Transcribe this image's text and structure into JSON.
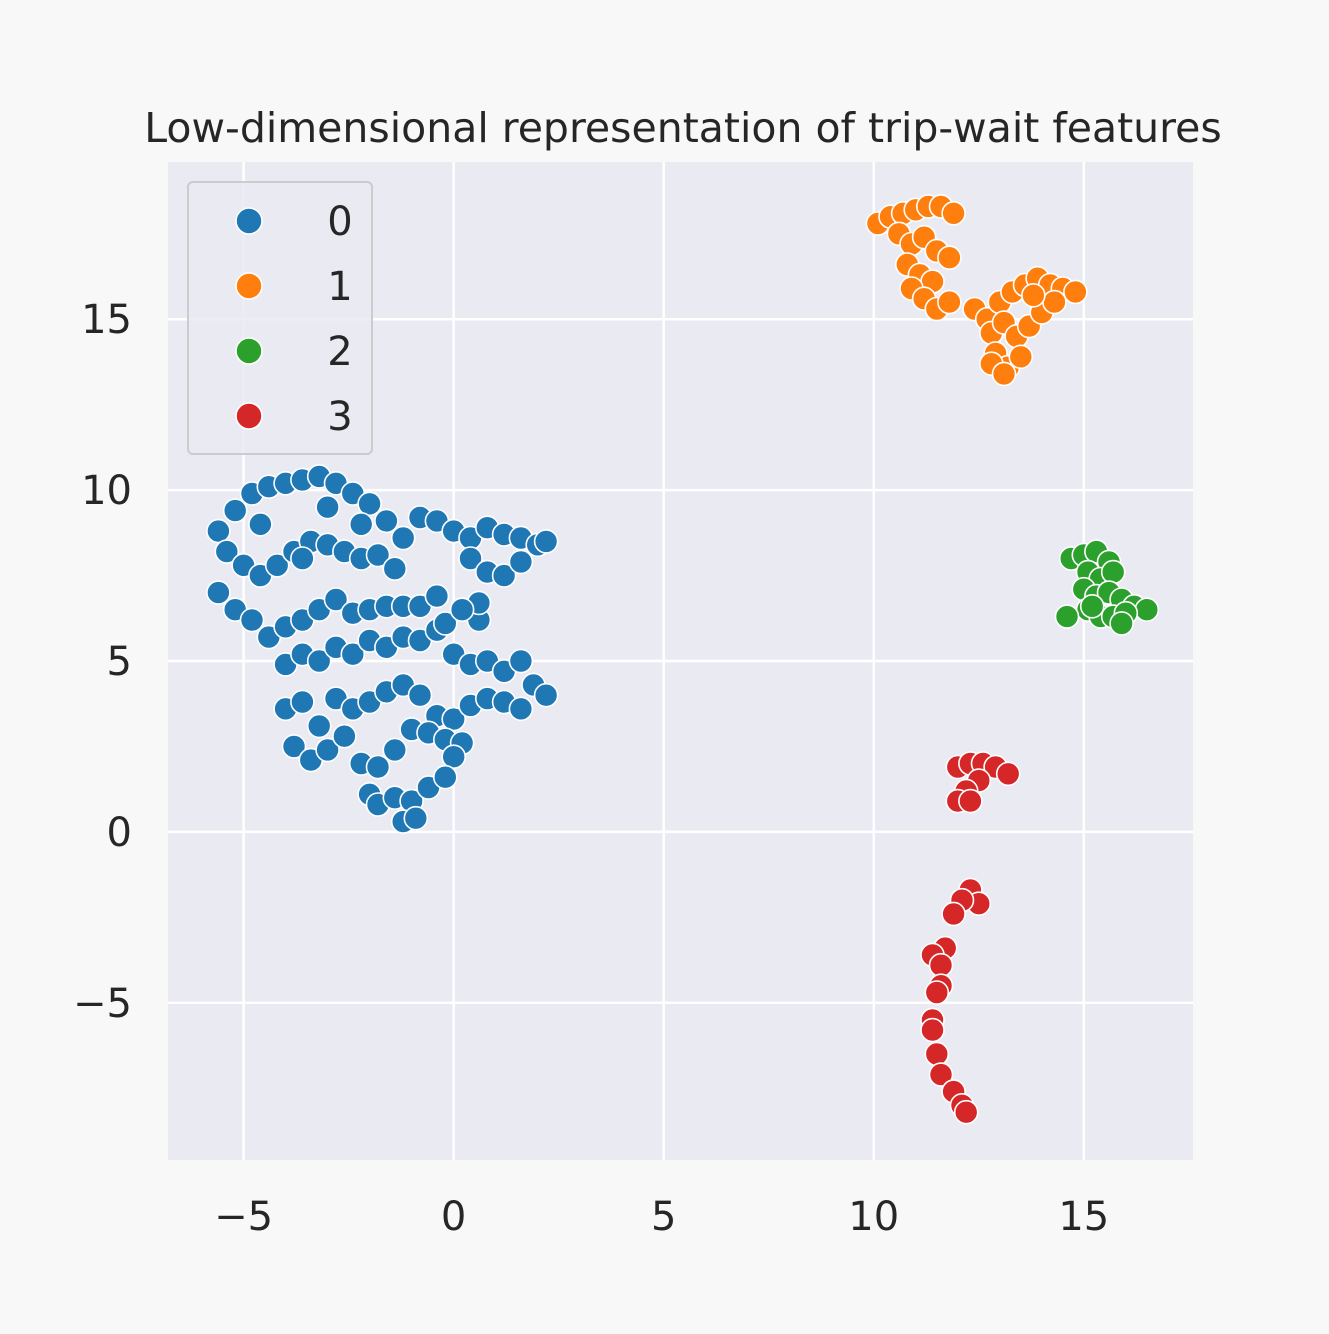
{
  "chart_data": {
    "type": "scatter",
    "title": "Low-dimensional representation of trip-wait features",
    "xlabel": "",
    "ylabel": "",
    "xlim": [
      -6.8,
      17.6
    ],
    "ylim": [
      -9.6,
      19.6
    ],
    "xticks": [
      -5,
      0,
      5,
      10,
      15
    ],
    "yticks": [
      -5,
      0,
      5,
      10,
      15
    ],
    "xtick_labels": [
      "−5",
      "0",
      "5",
      "10",
      "15"
    ],
    "ytick_labels": [
      "−5",
      "0",
      "5",
      "10",
      "15"
    ],
    "grid": true,
    "legend_position": "top-left",
    "series": [
      {
        "name": "0",
        "color": "#1f77b4",
        "points": [
          [
            -5.6,
            8.8
          ],
          [
            -5.2,
            9.4
          ],
          [
            -4.8,
            9.9
          ],
          [
            -4.4,
            10.1
          ],
          [
            -4.0,
            10.2
          ],
          [
            -3.6,
            10.3
          ],
          [
            -3.2,
            10.4
          ],
          [
            -2.8,
            10.2
          ],
          [
            -2.4,
            9.9
          ],
          [
            -2.0,
            9.6
          ],
          [
            -1.6,
            9.1
          ],
          [
            -1.2,
            8.6
          ],
          [
            -5.4,
            8.2
          ],
          [
            -5.0,
            7.8
          ],
          [
            -4.6,
            7.5
          ],
          [
            -4.2,
            7.8
          ],
          [
            -3.8,
            8.2
          ],
          [
            -3.4,
            8.5
          ],
          [
            -3.0,
            8.4
          ],
          [
            -2.6,
            8.2
          ],
          [
            -2.2,
            8.0
          ],
          [
            -1.8,
            8.1
          ],
          [
            -1.4,
            7.7
          ],
          [
            -5.6,
            7.0
          ],
          [
            -5.2,
            6.5
          ],
          [
            -4.8,
            6.2
          ],
          [
            -4.4,
            5.7
          ],
          [
            -4.0,
            6.0
          ],
          [
            -3.6,
            6.2
          ],
          [
            -3.2,
            6.5
          ],
          [
            -2.8,
            6.8
          ],
          [
            -2.4,
            6.4
          ],
          [
            -2.0,
            6.5
          ],
          [
            -1.6,
            6.6
          ],
          [
            -1.2,
            6.6
          ],
          [
            -0.8,
            6.6
          ],
          [
            -0.4,
            6.9
          ],
          [
            -0.8,
            9.2
          ],
          [
            -0.4,
            9.1
          ],
          [
            0.0,
            8.8
          ],
          [
            0.4,
            8.6
          ],
          [
            0.8,
            8.9
          ],
          [
            1.2,
            8.7
          ],
          [
            1.6,
            8.6
          ],
          [
            2.0,
            8.4
          ],
          [
            2.2,
            8.5
          ],
          [
            0.4,
            8.0
          ],
          [
            0.8,
            7.6
          ],
          [
            1.2,
            7.5
          ],
          [
            1.6,
            7.9
          ],
          [
            -4.0,
            4.9
          ],
          [
            -3.6,
            5.2
          ],
          [
            -3.2,
            5.0
          ],
          [
            -2.8,
            5.4
          ],
          [
            -2.4,
            5.2
          ],
          [
            -2.0,
            5.6
          ],
          [
            -1.6,
            5.4
          ],
          [
            -1.2,
            5.7
          ],
          [
            -0.8,
            5.6
          ],
          [
            -0.4,
            5.9
          ],
          [
            0.0,
            5.2
          ],
          [
            0.4,
            4.9
          ],
          [
            0.8,
            5.0
          ],
          [
            1.2,
            4.7
          ],
          [
            1.6,
            5.0
          ],
          [
            1.9,
            4.3
          ],
          [
            2.2,
            4.0
          ],
          [
            -4.0,
            3.6
          ],
          [
            -3.6,
            3.8
          ],
          [
            -3.2,
            3.1
          ],
          [
            -2.8,
            3.9
          ],
          [
            -2.4,
            3.6
          ],
          [
            -2.0,
            3.8
          ],
          [
            -1.6,
            4.1
          ],
          [
            -1.2,
            4.3
          ],
          [
            -0.8,
            4.0
          ],
          [
            -0.4,
            3.4
          ],
          [
            0.0,
            3.3
          ],
          [
            0.4,
            3.7
          ],
          [
            0.8,
            3.9
          ],
          [
            1.2,
            3.8
          ],
          [
            1.6,
            3.6
          ],
          [
            -3.8,
            2.5
          ],
          [
            -3.4,
            2.1
          ],
          [
            -3.0,
            2.4
          ],
          [
            -2.6,
            2.8
          ],
          [
            -2.2,
            2.0
          ],
          [
            -1.8,
            1.9
          ],
          [
            -1.4,
            2.4
          ],
          [
            -1.0,
            3.0
          ],
          [
            -0.6,
            2.9
          ],
          [
            -0.2,
            2.7
          ],
          [
            0.2,
            2.6
          ],
          [
            0.0,
            2.2
          ],
          [
            -2.0,
            1.1
          ],
          [
            -1.8,
            0.8
          ],
          [
            -1.4,
            1.0
          ],
          [
            -1.0,
            0.9
          ],
          [
            -0.6,
            1.3
          ],
          [
            -0.2,
            1.6
          ],
          [
            -1.2,
            0.3
          ],
          [
            -0.9,
            0.4
          ],
          [
            -3.6,
            8.0
          ],
          [
            -3.0,
            9.5
          ],
          [
            -2.2,
            9.0
          ],
          [
            -4.6,
            9.0
          ],
          [
            -0.2,
            6.1
          ],
          [
            0.6,
            6.2
          ],
          [
            0.6,
            6.7
          ],
          [
            0.2,
            6.5
          ]
        ]
      },
      {
        "name": "1",
        "color": "#ff7f0e",
        "points": [
          [
            10.1,
            17.8
          ],
          [
            10.4,
            18.0
          ],
          [
            10.7,
            18.1
          ],
          [
            11.0,
            18.2
          ],
          [
            11.3,
            18.3
          ],
          [
            11.6,
            18.3
          ],
          [
            11.9,
            18.1
          ],
          [
            10.6,
            17.5
          ],
          [
            10.9,
            17.2
          ],
          [
            11.2,
            17.4
          ],
          [
            11.5,
            17.0
          ],
          [
            11.8,
            16.8
          ],
          [
            10.8,
            16.6
          ],
          [
            11.1,
            16.3
          ],
          [
            11.4,
            16.1
          ],
          [
            10.9,
            15.9
          ],
          [
            11.2,
            15.6
          ],
          [
            11.5,
            15.3
          ],
          [
            11.8,
            15.5
          ],
          [
            12.4,
            15.3
          ],
          [
            12.7,
            15.0
          ],
          [
            13.0,
            15.5
          ],
          [
            13.3,
            15.8
          ],
          [
            13.6,
            16.0
          ],
          [
            13.9,
            16.2
          ],
          [
            14.2,
            16.0
          ],
          [
            14.5,
            15.9
          ],
          [
            14.8,
            15.8
          ],
          [
            12.8,
            14.6
          ],
          [
            13.1,
            14.9
          ],
          [
            13.4,
            14.5
          ],
          [
            13.7,
            14.8
          ],
          [
            14.0,
            15.2
          ],
          [
            14.3,
            15.5
          ],
          [
            12.9,
            14.0
          ],
          [
            13.2,
            13.6
          ],
          [
            13.5,
            13.9
          ],
          [
            12.8,
            13.7
          ],
          [
            13.1,
            13.4
          ],
          [
            13.8,
            15.7
          ]
        ]
      },
      {
        "name": "2",
        "color": "#2ca02c",
        "points": [
          [
            14.7,
            8.0
          ],
          [
            15.0,
            8.1
          ],
          [
            15.3,
            8.2
          ],
          [
            15.6,
            7.9
          ],
          [
            15.1,
            7.6
          ],
          [
            15.4,
            7.4
          ],
          [
            15.7,
            7.6
          ],
          [
            15.0,
            7.1
          ],
          [
            15.3,
            6.9
          ],
          [
            15.6,
            7.0
          ],
          [
            15.9,
            6.8
          ],
          [
            16.2,
            6.6
          ],
          [
            16.5,
            6.5
          ],
          [
            15.1,
            6.5
          ],
          [
            15.4,
            6.3
          ],
          [
            15.7,
            6.3
          ],
          [
            16.0,
            6.4
          ],
          [
            15.9,
            6.1
          ],
          [
            14.6,
            6.3
          ],
          [
            15.2,
            6.6
          ]
        ]
      },
      {
        "name": "3",
        "color": "#d62728",
        "points": [
          [
            12.0,
            1.9
          ],
          [
            12.3,
            2.0
          ],
          [
            12.6,
            2.0
          ],
          [
            12.9,
            1.9
          ],
          [
            13.2,
            1.7
          ],
          [
            12.5,
            1.5
          ],
          [
            12.2,
            1.2
          ],
          [
            12.0,
            0.9
          ],
          [
            12.3,
            0.9
          ],
          [
            12.3,
            -1.7
          ],
          [
            12.5,
            -2.1
          ],
          [
            12.1,
            -2.0
          ],
          [
            11.9,
            -2.4
          ],
          [
            11.7,
            -3.4
          ],
          [
            11.4,
            -3.6
          ],
          [
            11.6,
            -3.9
          ],
          [
            11.6,
            -4.5
          ],
          [
            11.5,
            -4.7
          ],
          [
            11.4,
            -5.5
          ],
          [
            11.4,
            -5.8
          ],
          [
            11.5,
            -6.5
          ],
          [
            11.6,
            -7.1
          ],
          [
            11.9,
            -7.6
          ],
          [
            12.1,
            -8.0
          ],
          [
            12.2,
            -8.2
          ]
        ]
      }
    ]
  }
}
